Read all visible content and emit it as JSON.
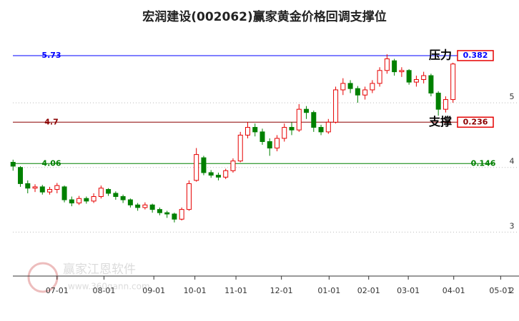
{
  "chart_data": {
    "type": "candlestick",
    "title": "宏润建设(002062)赢家黄金价格回调支撑位",
    "watermark": "赢家江恩软件",
    "watermark_url": "www.360gann.com",
    "up_color": "#e60000",
    "down_color": "#008000",
    "ohlc": [
      [
        4.08,
        4.02,
        3.95,
        4.12
      ],
      [
        4.0,
        3.75,
        3.7,
        4.02
      ],
      [
        3.75,
        3.68,
        3.6,
        3.8
      ],
      [
        3.68,
        3.7,
        3.62,
        3.74
      ],
      [
        3.7,
        3.62,
        3.58,
        3.73
      ],
      [
        3.62,
        3.66,
        3.58,
        3.7
      ],
      [
        3.66,
        3.72,
        3.6,
        3.76
      ],
      [
        3.7,
        3.5,
        3.46,
        3.72
      ],
      [
        3.5,
        3.45,
        3.4,
        3.55
      ],
      [
        3.45,
        3.52,
        3.42,
        3.56
      ],
      [
        3.52,
        3.48,
        3.44,
        3.55
      ],
      [
        3.48,
        3.55,
        3.45,
        3.6
      ],
      [
        3.55,
        3.68,
        3.52,
        3.72
      ],
      [
        3.66,
        3.6,
        3.56,
        3.68
      ],
      [
        3.6,
        3.55,
        3.5,
        3.63
      ],
      [
        3.55,
        3.5,
        3.45,
        3.58
      ],
      [
        3.5,
        3.42,
        3.38,
        3.52
      ],
      [
        3.42,
        3.38,
        3.33,
        3.45
      ],
      [
        3.38,
        3.42,
        3.35,
        3.46
      ],
      [
        3.42,
        3.35,
        3.3,
        3.44
      ],
      [
        3.35,
        3.3,
        3.26,
        3.38
      ],
      [
        3.3,
        3.28,
        3.22,
        3.33
      ],
      [
        3.28,
        3.2,
        3.15,
        3.3
      ],
      [
        3.2,
        3.35,
        3.18,
        3.38
      ],
      [
        3.35,
        3.75,
        3.33,
        3.8
      ],
      [
        3.8,
        4.2,
        3.78,
        4.3
      ],
      [
        4.15,
        3.92,
        3.88,
        4.18
      ],
      [
        3.92,
        3.88,
        3.84,
        3.96
      ],
      [
        3.88,
        3.85,
        3.8,
        3.92
      ],
      [
        3.85,
        3.95,
        3.82,
        3.98
      ],
      [
        3.95,
        4.1,
        3.92,
        4.14
      ],
      [
        4.1,
        4.5,
        4.08,
        4.55
      ],
      [
        4.5,
        4.62,
        4.45,
        4.7
      ],
      [
        4.62,
        4.55,
        4.48,
        4.68
      ],
      [
        4.55,
        4.4,
        4.35,
        4.6
      ],
      [
        4.4,
        4.3,
        4.18,
        4.45
      ],
      [
        4.3,
        4.45,
        4.25,
        4.5
      ],
      [
        4.45,
        4.62,
        4.4,
        4.68
      ],
      [
        4.62,
        4.58,
        4.5,
        4.7
      ],
      [
        4.58,
        4.9,
        4.55,
        4.98
      ],
      [
        4.9,
        4.85,
        4.75,
        4.95
      ],
      [
        4.85,
        4.62,
        4.55,
        4.88
      ],
      [
        4.62,
        4.55,
        4.5,
        4.66
      ],
      [
        4.55,
        4.7,
        4.52,
        4.75
      ],
      [
        4.7,
        5.2,
        4.68,
        5.25
      ],
      [
        5.2,
        5.3,
        5.12,
        5.38
      ],
      [
        5.3,
        5.22,
        5.15,
        5.35
      ],
      [
        5.22,
        5.12,
        5.0,
        5.26
      ],
      [
        5.12,
        5.2,
        5.05,
        5.25
      ],
      [
        5.2,
        5.3,
        5.15,
        5.35
      ],
      [
        5.3,
        5.5,
        5.25,
        5.55
      ],
      [
        5.5,
        5.68,
        5.45,
        5.75
      ],
      [
        5.65,
        5.48,
        5.42,
        5.68
      ],
      [
        5.48,
        5.5,
        5.4,
        5.55
      ],
      [
        5.5,
        5.32,
        5.28,
        5.52
      ],
      [
        5.32,
        5.36,
        5.25,
        5.42
      ],
      [
        5.36,
        5.42,
        5.3,
        5.48
      ],
      [
        5.42,
        5.15,
        5.1,
        5.45
      ],
      [
        5.15,
        4.9,
        4.8,
        5.18
      ],
      [
        4.9,
        5.05,
        4.85,
        5.1
      ],
      [
        5.05,
        5.6,
        5.0,
        5.62
      ]
    ],
    "xlim": [
      -1,
      69
    ],
    "xticks": [
      {
        "value": 6,
        "label": "07-01"
      },
      {
        "value": 12.4,
        "label": "08-01"
      },
      {
        "value": 19.2,
        "label": "09-01"
      },
      {
        "value": 24.8,
        "label": "10-01"
      },
      {
        "value": 30.4,
        "label": "11-01"
      },
      {
        "value": 36.6,
        "label": "12-01"
      },
      {
        "value": 43.1,
        "label": "01-01"
      },
      {
        "value": 48.5,
        "label": "02-01"
      },
      {
        "value": 53.9,
        "label": "03-01"
      },
      {
        "value": 60.1,
        "label": "04-01"
      },
      {
        "value": 66.5,
        "label": "05-01"
      }
    ],
    "ylim": [
      2.32,
      6.59
    ],
    "yticks": [
      2,
      3,
      4,
      5
    ],
    "grid": true,
    "levels": [
      {
        "value": 5.73,
        "ratio": "0.382",
        "color": "#0000ff",
        "tag": "压力"
      },
      {
        "value": 4.7,
        "ratio": "0.236",
        "color": "#8b0000",
        "tag": "支撑"
      },
      {
        "value": 4.06,
        "ratio": "0.146",
        "color": "#008000"
      }
    ]
  }
}
